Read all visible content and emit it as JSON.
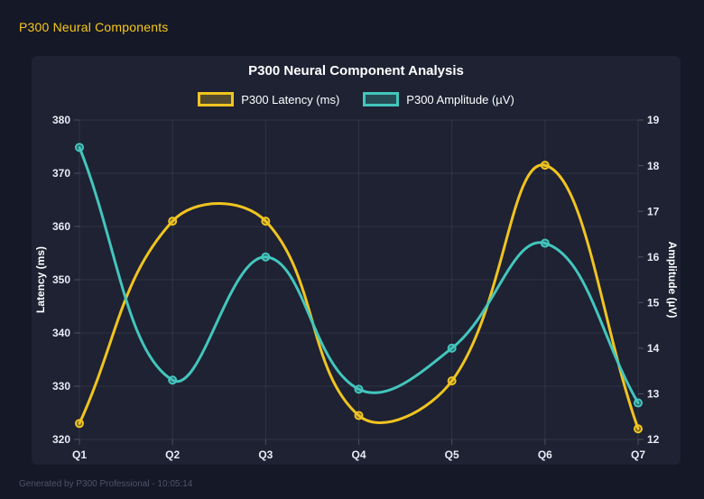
{
  "page": {
    "header_title": "P300 Neural Components",
    "footer": "Generated by P300 Professional - 10:05:14"
  },
  "colors": {
    "page_bg": "#151826",
    "card_bg": "#1e2233",
    "latency_line": "#f0c420",
    "amplitude_line": "#43c6bd",
    "grid": "rgba(255,255,255,0.08)",
    "tick_mark": "rgba(255,255,255,0.20)",
    "tick_text": "#e9ebf4",
    "axis_title_text": "#ffffff",
    "chart_title_text": "#ffffff",
    "legend_text": "#ffffff",
    "header_text": "#f6c81e",
    "footer_text": "#4e5369"
  },
  "chart_data": {
    "type": "line",
    "title": "P300 Neural Component Analysis",
    "categories": [
      "Q1",
      "Q2",
      "Q3",
      "Q4",
      "Q5",
      "Q6",
      "Q7"
    ],
    "series": [
      {
        "name": "P300 Latency (ms)",
        "axis": "left",
        "color": "#f0c420",
        "values": [
          323,
          361,
          361,
          324.5,
          331,
          371.5,
          322
        ]
      },
      {
        "name": "P300 Amplitude (µV)",
        "axis": "right",
        "color": "#43c6bd",
        "values": [
          18.4,
          13.3,
          16.0,
          13.1,
          14.0,
          16.3,
          12.8
        ]
      }
    ],
    "left_axis": {
      "label": "Latency (ms)",
      "min": 320,
      "max": 380,
      "ticks": [
        380,
        370,
        360,
        350,
        340,
        330,
        320
      ]
    },
    "right_axis": {
      "label": "Amplitude (µV)",
      "min": 12,
      "max": 19,
      "ticks": [
        19,
        18,
        17,
        16,
        15,
        14,
        13,
        12
      ]
    },
    "legend_position": "top",
    "grid": true,
    "curve_tension": 0.4
  }
}
